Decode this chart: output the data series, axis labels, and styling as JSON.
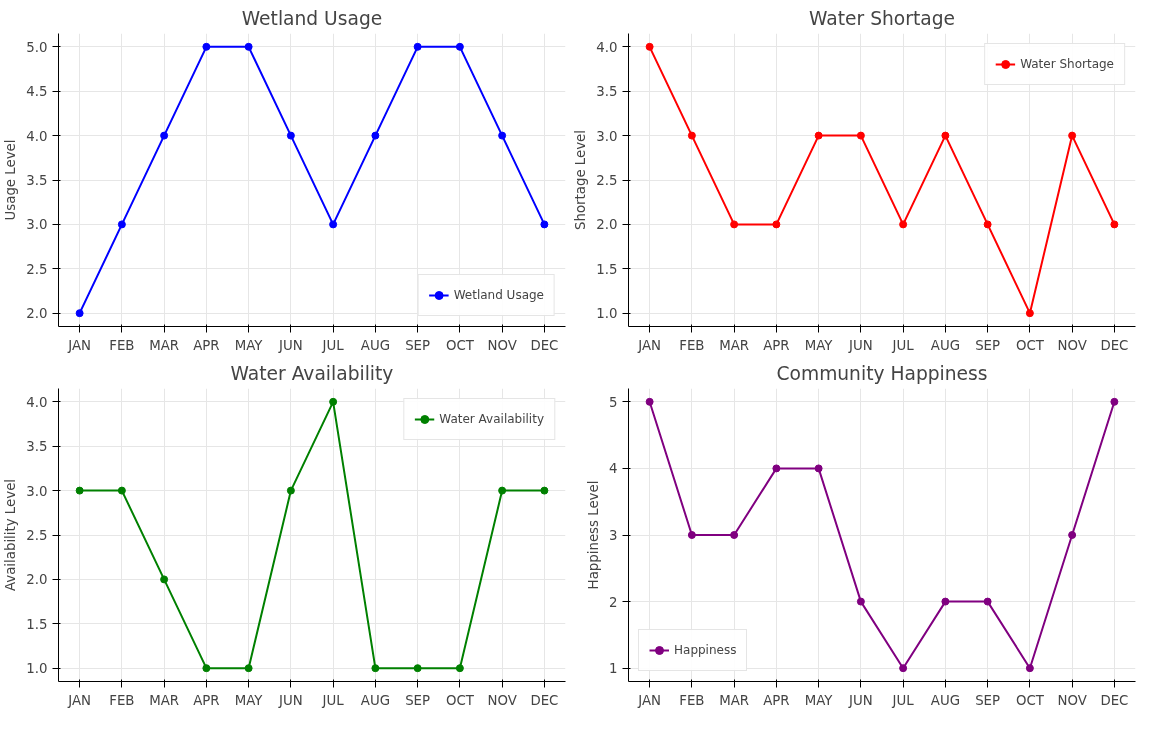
{
  "chart_data": [
    {
      "type": "line",
      "title": "Wetland Usage",
      "ylabel": "Usage Level",
      "categories": [
        "JAN",
        "FEB",
        "MAR",
        "APR",
        "MAY",
        "JUN",
        "JUL",
        "AUG",
        "SEP",
        "OCT",
        "NOV",
        "DEC"
      ],
      "series": [
        {
          "name": "Wetland Usage",
          "color": "#0000ff",
          "values": [
            2,
            3,
            4,
            5,
            5,
            4,
            3,
            4,
            5,
            5,
            4,
            3
          ]
        }
      ],
      "ylim": [
        1.85,
        5.15
      ],
      "yticks": [
        {
          "value": 2,
          "label": "2.0"
        },
        {
          "value": 2.5,
          "label": "2.5"
        },
        {
          "value": 3,
          "label": "3.0"
        },
        {
          "value": 3.5,
          "label": "3.5"
        },
        {
          "value": 4,
          "label": "4.0"
        },
        {
          "value": 4.5,
          "label": "4.5"
        },
        {
          "value": 5,
          "label": "5.0"
        }
      ],
      "grid": true,
      "legend": "bottom right",
      "marker": "circle",
      "line_style": "solid"
    },
    {
      "type": "line",
      "title": "Water Shortage",
      "ylabel": "Shortage Level",
      "categories": [
        "JAN",
        "FEB",
        "MAR",
        "APR",
        "MAY",
        "JUN",
        "JUL",
        "AUG",
        "SEP",
        "OCT",
        "NOV",
        "DEC"
      ],
      "series": [
        {
          "name": "Water Shortage",
          "color": "#ff0000",
          "values": [
            4,
            3,
            2,
            2,
            3,
            3,
            2,
            3,
            2,
            1,
            3,
            2
          ]
        }
      ],
      "ylim": [
        0.85,
        4.15
      ],
      "yticks": [
        {
          "value": 1,
          "label": "1.0"
        },
        {
          "value": 1.5,
          "label": "1.5"
        },
        {
          "value": 2,
          "label": "2.0"
        },
        {
          "value": 2.5,
          "label": "2.5"
        },
        {
          "value": 3,
          "label": "3.0"
        },
        {
          "value": 3.5,
          "label": "3.5"
        },
        {
          "value": 4,
          "label": "4.0"
        }
      ],
      "grid": true,
      "legend": "top right",
      "marker": "circle",
      "line_style": "solid"
    },
    {
      "type": "line",
      "title": "Water Availability",
      "ylabel": "Availability Level",
      "categories": [
        "JAN",
        "FEB",
        "MAR",
        "APR",
        "MAY",
        "JUN",
        "JUL",
        "AUG",
        "SEP",
        "OCT",
        "NOV",
        "DEC"
      ],
      "series": [
        {
          "name": "Water Availability",
          "color": "#008000",
          "values": [
            3,
            3,
            2,
            1,
            1,
            3,
            4,
            1,
            1,
            1,
            3,
            3
          ]
        }
      ],
      "ylim": [
        0.85,
        4.15
      ],
      "yticks": [
        {
          "value": 1,
          "label": "1.0"
        },
        {
          "value": 1.5,
          "label": "1.5"
        },
        {
          "value": 2,
          "label": "2.0"
        },
        {
          "value": 2.5,
          "label": "2.5"
        },
        {
          "value": 3,
          "label": "3.0"
        },
        {
          "value": 3.5,
          "label": "3.5"
        },
        {
          "value": 4,
          "label": "4.0"
        }
      ],
      "grid": true,
      "legend": "top right",
      "marker": "circle",
      "line_style": "solid"
    },
    {
      "type": "line",
      "title": "Community Happiness",
      "ylabel": "Happiness Level",
      "categories": [
        "JAN",
        "FEB",
        "MAR",
        "APR",
        "MAY",
        "JUN",
        "JUL",
        "AUG",
        "SEP",
        "OCT",
        "NOV",
        "DEC"
      ],
      "series": [
        {
          "name": "Happiness",
          "color": "#800080",
          "values": [
            5,
            3,
            3,
            4,
            4,
            2,
            1,
            2,
            2,
            1,
            3,
            5
          ]
        }
      ],
      "ylim": [
        0.8,
        5.2
      ],
      "yticks": [
        1,
        2,
        3,
        4,
        5
      ],
      "grid": true,
      "legend": "bottom left",
      "marker": "circle",
      "line_style": "solid"
    }
  ]
}
